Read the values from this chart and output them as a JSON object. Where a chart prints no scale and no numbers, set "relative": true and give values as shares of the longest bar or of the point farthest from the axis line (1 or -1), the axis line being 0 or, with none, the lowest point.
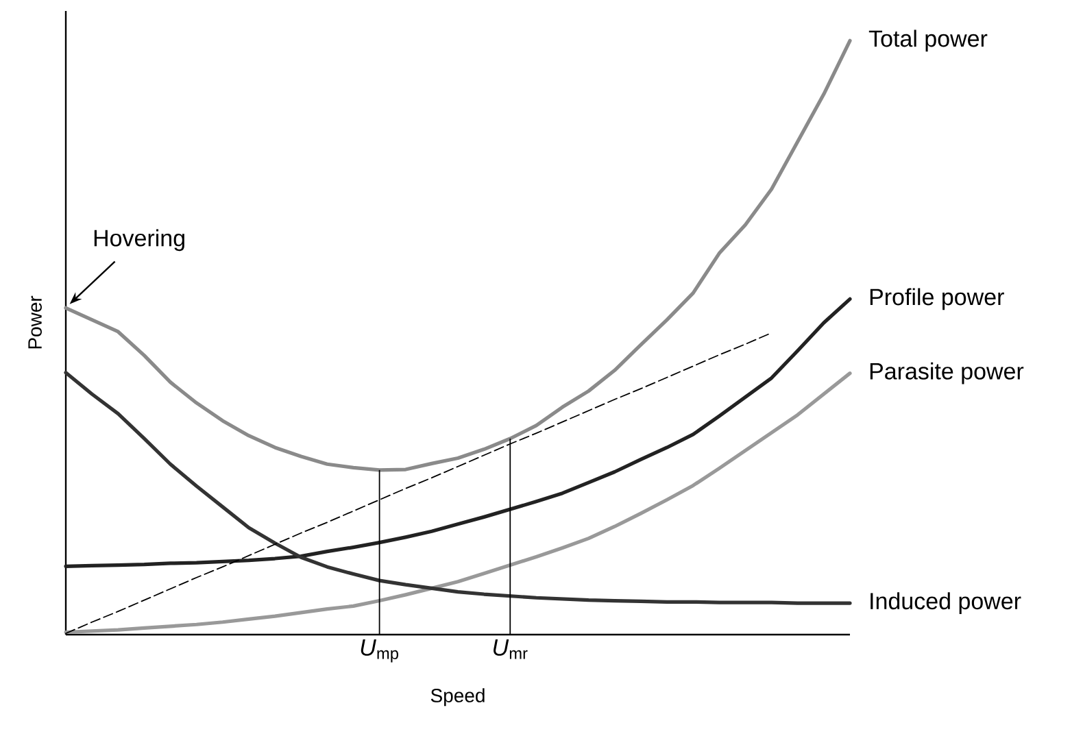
{
  "chart_data": {
    "type": "line",
    "relative": true,
    "xlabel": "Speed",
    "ylabel": "Power",
    "categories": [
      null,
      null,
      null,
      null,
      null,
      null,
      null,
      null,
      null,
      null,
      null,
      null,
      "*U*$_{mp}$",
      null,
      null,
      null,
      null,
      "*U*$_{mr}$",
      null,
      null,
      null,
      null,
      null,
      null,
      null,
      null,
      null,
      null,
      null,
      null,
      null
    ],
    "series": [
      {
        "name": "Total power",
        "color": "#8a8a8a",
        "values": [
          0.55,
          0.53,
          0.51,
          0.47,
          0.425,
          0.39,
          0.36,
          0.335,
          0.315,
          0.3,
          0.287,
          0.281,
          0.277,
          0.278,
          0.288,
          0.297,
          0.312,
          0.33,
          0.352,
          0.383,
          0.41,
          0.445,
          0.488,
          0.53,
          0.575,
          0.642,
          0.69,
          0.75,
          0.83,
          0.91,
          1.0
        ]
      },
      {
        "name": "Profile power",
        "color": "#222222",
        "values": [
          0.115,
          0.116,
          0.117,
          0.118,
          0.12,
          0.121,
          0.123,
          0.125,
          0.128,
          0.132,
          0.14,
          0.147,
          0.155,
          0.164,
          0.174,
          0.186,
          0.198,
          0.211,
          0.224,
          0.238,
          0.256,
          0.274,
          0.295,
          0.315,
          0.337,
          0.368,
          0.4,
          0.432,
          0.478,
          0.525,
          0.565
        ]
      },
      {
        "name": "Parasite power",
        "color": "#999999",
        "values": [
          0.004,
          0.006,
          0.008,
          0.011,
          0.014,
          0.017,
          0.021,
          0.026,
          0.031,
          0.037,
          0.043,
          0.048,
          0.057,
          0.067,
          0.078,
          0.089,
          0.103,
          0.117,
          0.131,
          0.146,
          0.162,
          0.182,
          0.204,
          0.227,
          0.251,
          0.28,
          0.31,
          0.34,
          0.37,
          0.405,
          0.44
        ]
      },
      {
        "name": "Induced power",
        "color": "#333333",
        "values": [
          0.441,
          0.405,
          0.372,
          0.33,
          0.287,
          0.25,
          0.215,
          0.18,
          0.154,
          0.13,
          0.114,
          0.102,
          0.091,
          0.084,
          0.078,
          0.072,
          0.068,
          0.065,
          0.062,
          0.06,
          0.058,
          0.057,
          0.056,
          0.055,
          0.055,
          0.054,
          0.054,
          0.054,
          0.053,
          0.053,
          0.053
        ]
      },
      {
        "color": "#000000",
        "line_style": "dashed",
        "values": [
          0.002,
          0.021,
          0.039,
          0.058,
          0.077,
          0.096,
          0.114,
          0.133,
          0.152,
          0.171,
          0.189,
          0.208,
          0.227,
          0.246,
          0.264,
          0.283,
          0.302,
          0.321,
          0.339,
          0.358,
          0.377,
          0.396,
          0.414,
          0.433,
          0.452,
          0.471,
          0.489,
          0.508,
          null,
          null,
          null
        ]
      },
      {
        "type": "bar",
        "color": "#000000",
        "values": [
          null,
          null,
          null,
          null,
          null,
          null,
          null,
          null,
          null,
          null,
          null,
          null,
          0.277,
          null,
          null,
          null,
          null,
          0.33,
          null,
          null,
          null,
          null,
          null,
          null,
          null,
          null,
          null,
          null,
          null,
          null,
          null
        ]
      }
    ],
    "annotations": [
      "Hovering"
    ]
  }
}
